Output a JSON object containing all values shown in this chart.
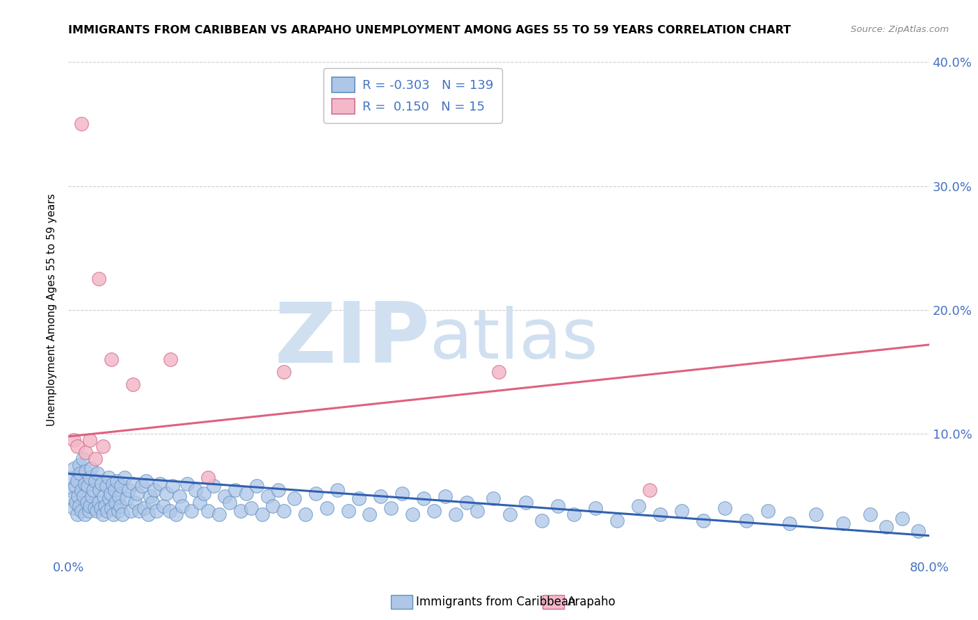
{
  "title": "IMMIGRANTS FROM CARIBBEAN VS ARAPAHO UNEMPLOYMENT AMONG AGES 55 TO 59 YEARS CORRELATION CHART",
  "source": "Source: ZipAtlas.com",
  "ylabel": "Unemployment Among Ages 55 to 59 years",
  "xlim": [
    0.0,
    0.8
  ],
  "ylim": [
    0.0,
    0.4
  ],
  "xticks": [
    0.0,
    0.1,
    0.2,
    0.3,
    0.4,
    0.5,
    0.6,
    0.7,
    0.8
  ],
  "yticks": [
    0.0,
    0.1,
    0.2,
    0.3,
    0.4
  ],
  "blue_R": -0.303,
  "blue_N": 139,
  "pink_R": 0.15,
  "pink_N": 15,
  "blue_color": "#aec6e8",
  "pink_color": "#f4b8c8",
  "blue_edge_color": "#6090c0",
  "pink_edge_color": "#d07090",
  "blue_line_color": "#3060b0",
  "pink_line_color": "#e06080",
  "watermark_zip": "ZIP",
  "watermark_atlas": "atlas",
  "watermark_color": "#d0e0f0",
  "blue_trend_y_start": 0.068,
  "blue_trend_y_end": 0.018,
  "pink_trend_y_start": 0.098,
  "pink_trend_y_end": 0.172,
  "blue_scatter_x": [
    0.002,
    0.003,
    0.004,
    0.005,
    0.005,
    0.006,
    0.007,
    0.008,
    0.008,
    0.009,
    0.01,
    0.01,
    0.011,
    0.012,
    0.012,
    0.013,
    0.014,
    0.015,
    0.015,
    0.016,
    0.017,
    0.018,
    0.019,
    0.02,
    0.02,
    0.021,
    0.022,
    0.023,
    0.024,
    0.025,
    0.026,
    0.027,
    0.028,
    0.029,
    0.03,
    0.031,
    0.032,
    0.033,
    0.034,
    0.035,
    0.036,
    0.037,
    0.038,
    0.039,
    0.04,
    0.041,
    0.042,
    0.043,
    0.044,
    0.045,
    0.046,
    0.047,
    0.048,
    0.049,
    0.05,
    0.052,
    0.054,
    0.056,
    0.058,
    0.06,
    0.062,
    0.064,
    0.066,
    0.068,
    0.07,
    0.072,
    0.074,
    0.076,
    0.078,
    0.08,
    0.082,
    0.085,
    0.088,
    0.091,
    0.094,
    0.097,
    0.1,
    0.103,
    0.106,
    0.11,
    0.114,
    0.118,
    0.122,
    0.126,
    0.13,
    0.135,
    0.14,
    0.145,
    0.15,
    0.155,
    0.16,
    0.165,
    0.17,
    0.175,
    0.18,
    0.185,
    0.19,
    0.195,
    0.2,
    0.21,
    0.22,
    0.23,
    0.24,
    0.25,
    0.26,
    0.27,
    0.28,
    0.29,
    0.3,
    0.31,
    0.32,
    0.33,
    0.34,
    0.35,
    0.36,
    0.37,
    0.38,
    0.395,
    0.41,
    0.425,
    0.44,
    0.455,
    0.47,
    0.49,
    0.51,
    0.53,
    0.55,
    0.57,
    0.59,
    0.61,
    0.63,
    0.65,
    0.67,
    0.695,
    0.72,
    0.745,
    0.76,
    0.775,
    0.79
  ],
  "blue_scatter_y": [
    0.055,
    0.065,
    0.048,
    0.072,
    0.04,
    0.058,
    0.045,
    0.062,
    0.035,
    0.05,
    0.075,
    0.042,
    0.068,
    0.055,
    0.038,
    0.08,
    0.05,
    0.06,
    0.035,
    0.07,
    0.045,
    0.058,
    0.038,
    0.065,
    0.042,
    0.072,
    0.05,
    0.055,
    0.04,
    0.062,
    0.038,
    0.068,
    0.045,
    0.055,
    0.04,
    0.06,
    0.035,
    0.05,
    0.042,
    0.058,
    0.038,
    0.065,
    0.048,
    0.052,
    0.04,
    0.06,
    0.035,
    0.055,
    0.045,
    0.062,
    0.038,
    0.05,
    0.042,
    0.058,
    0.035,
    0.065,
    0.048,
    0.055,
    0.038,
    0.06,
    0.045,
    0.052,
    0.038,
    0.058,
    0.04,
    0.062,
    0.035,
    0.05,
    0.045,
    0.055,
    0.038,
    0.06,
    0.042,
    0.052,
    0.038,
    0.058,
    0.035,
    0.05,
    0.042,
    0.06,
    0.038,
    0.055,
    0.045,
    0.052,
    0.038,
    0.058,
    0.035,
    0.05,
    0.045,
    0.055,
    0.038,
    0.052,
    0.04,
    0.058,
    0.035,
    0.05,
    0.042,
    0.055,
    0.038,
    0.048,
    0.035,
    0.052,
    0.04,
    0.055,
    0.038,
    0.048,
    0.035,
    0.05,
    0.04,
    0.052,
    0.035,
    0.048,
    0.038,
    0.05,
    0.035,
    0.045,
    0.038,
    0.048,
    0.035,
    0.045,
    0.03,
    0.042,
    0.035,
    0.04,
    0.03,
    0.042,
    0.035,
    0.038,
    0.03,
    0.04,
    0.03,
    0.038,
    0.028,
    0.035,
    0.028,
    0.035,
    0.025,
    0.032,
    0.022
  ],
  "pink_scatter_x": [
    0.005,
    0.008,
    0.012,
    0.016,
    0.02,
    0.025,
    0.028,
    0.032,
    0.04,
    0.06,
    0.095,
    0.13,
    0.2,
    0.4,
    0.54
  ],
  "pink_scatter_y": [
    0.095,
    0.09,
    0.35,
    0.085,
    0.095,
    0.08,
    0.225,
    0.09,
    0.16,
    0.14,
    0.16,
    0.065,
    0.15,
    0.15,
    0.055
  ]
}
